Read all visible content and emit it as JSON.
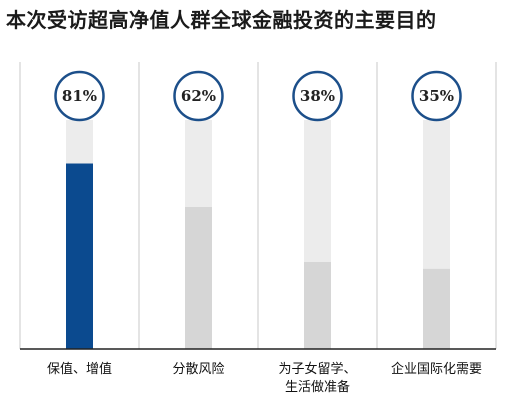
{
  "title": "本次受访超高净值人群全球金融投资的主要目的",
  "chart_data": {
    "type": "bar",
    "title": "本次受访超高净值人群全球金融投资的主要目的",
    "categories": [
      [
        "保值、增值"
      ],
      [
        "分散风险"
      ],
      [
        "为子女留学、",
        "生活做准备"
      ],
      [
        "企业国际化需要"
      ]
    ],
    "values": [
      81,
      62,
      38,
      35
    ],
    "value_labels": [
      "81%",
      "62%",
      "38%",
      "35%"
    ],
    "ylim": [
      0,
      100
    ],
    "highlight_index": 0,
    "colors": {
      "highlight_bar": "#0b4a8f",
      "bar": "#d6d6d6",
      "track": "#ececec",
      "circle_stroke": "#1c4f8a",
      "separator": "#c8c8c8",
      "baseline": "#222222"
    }
  }
}
